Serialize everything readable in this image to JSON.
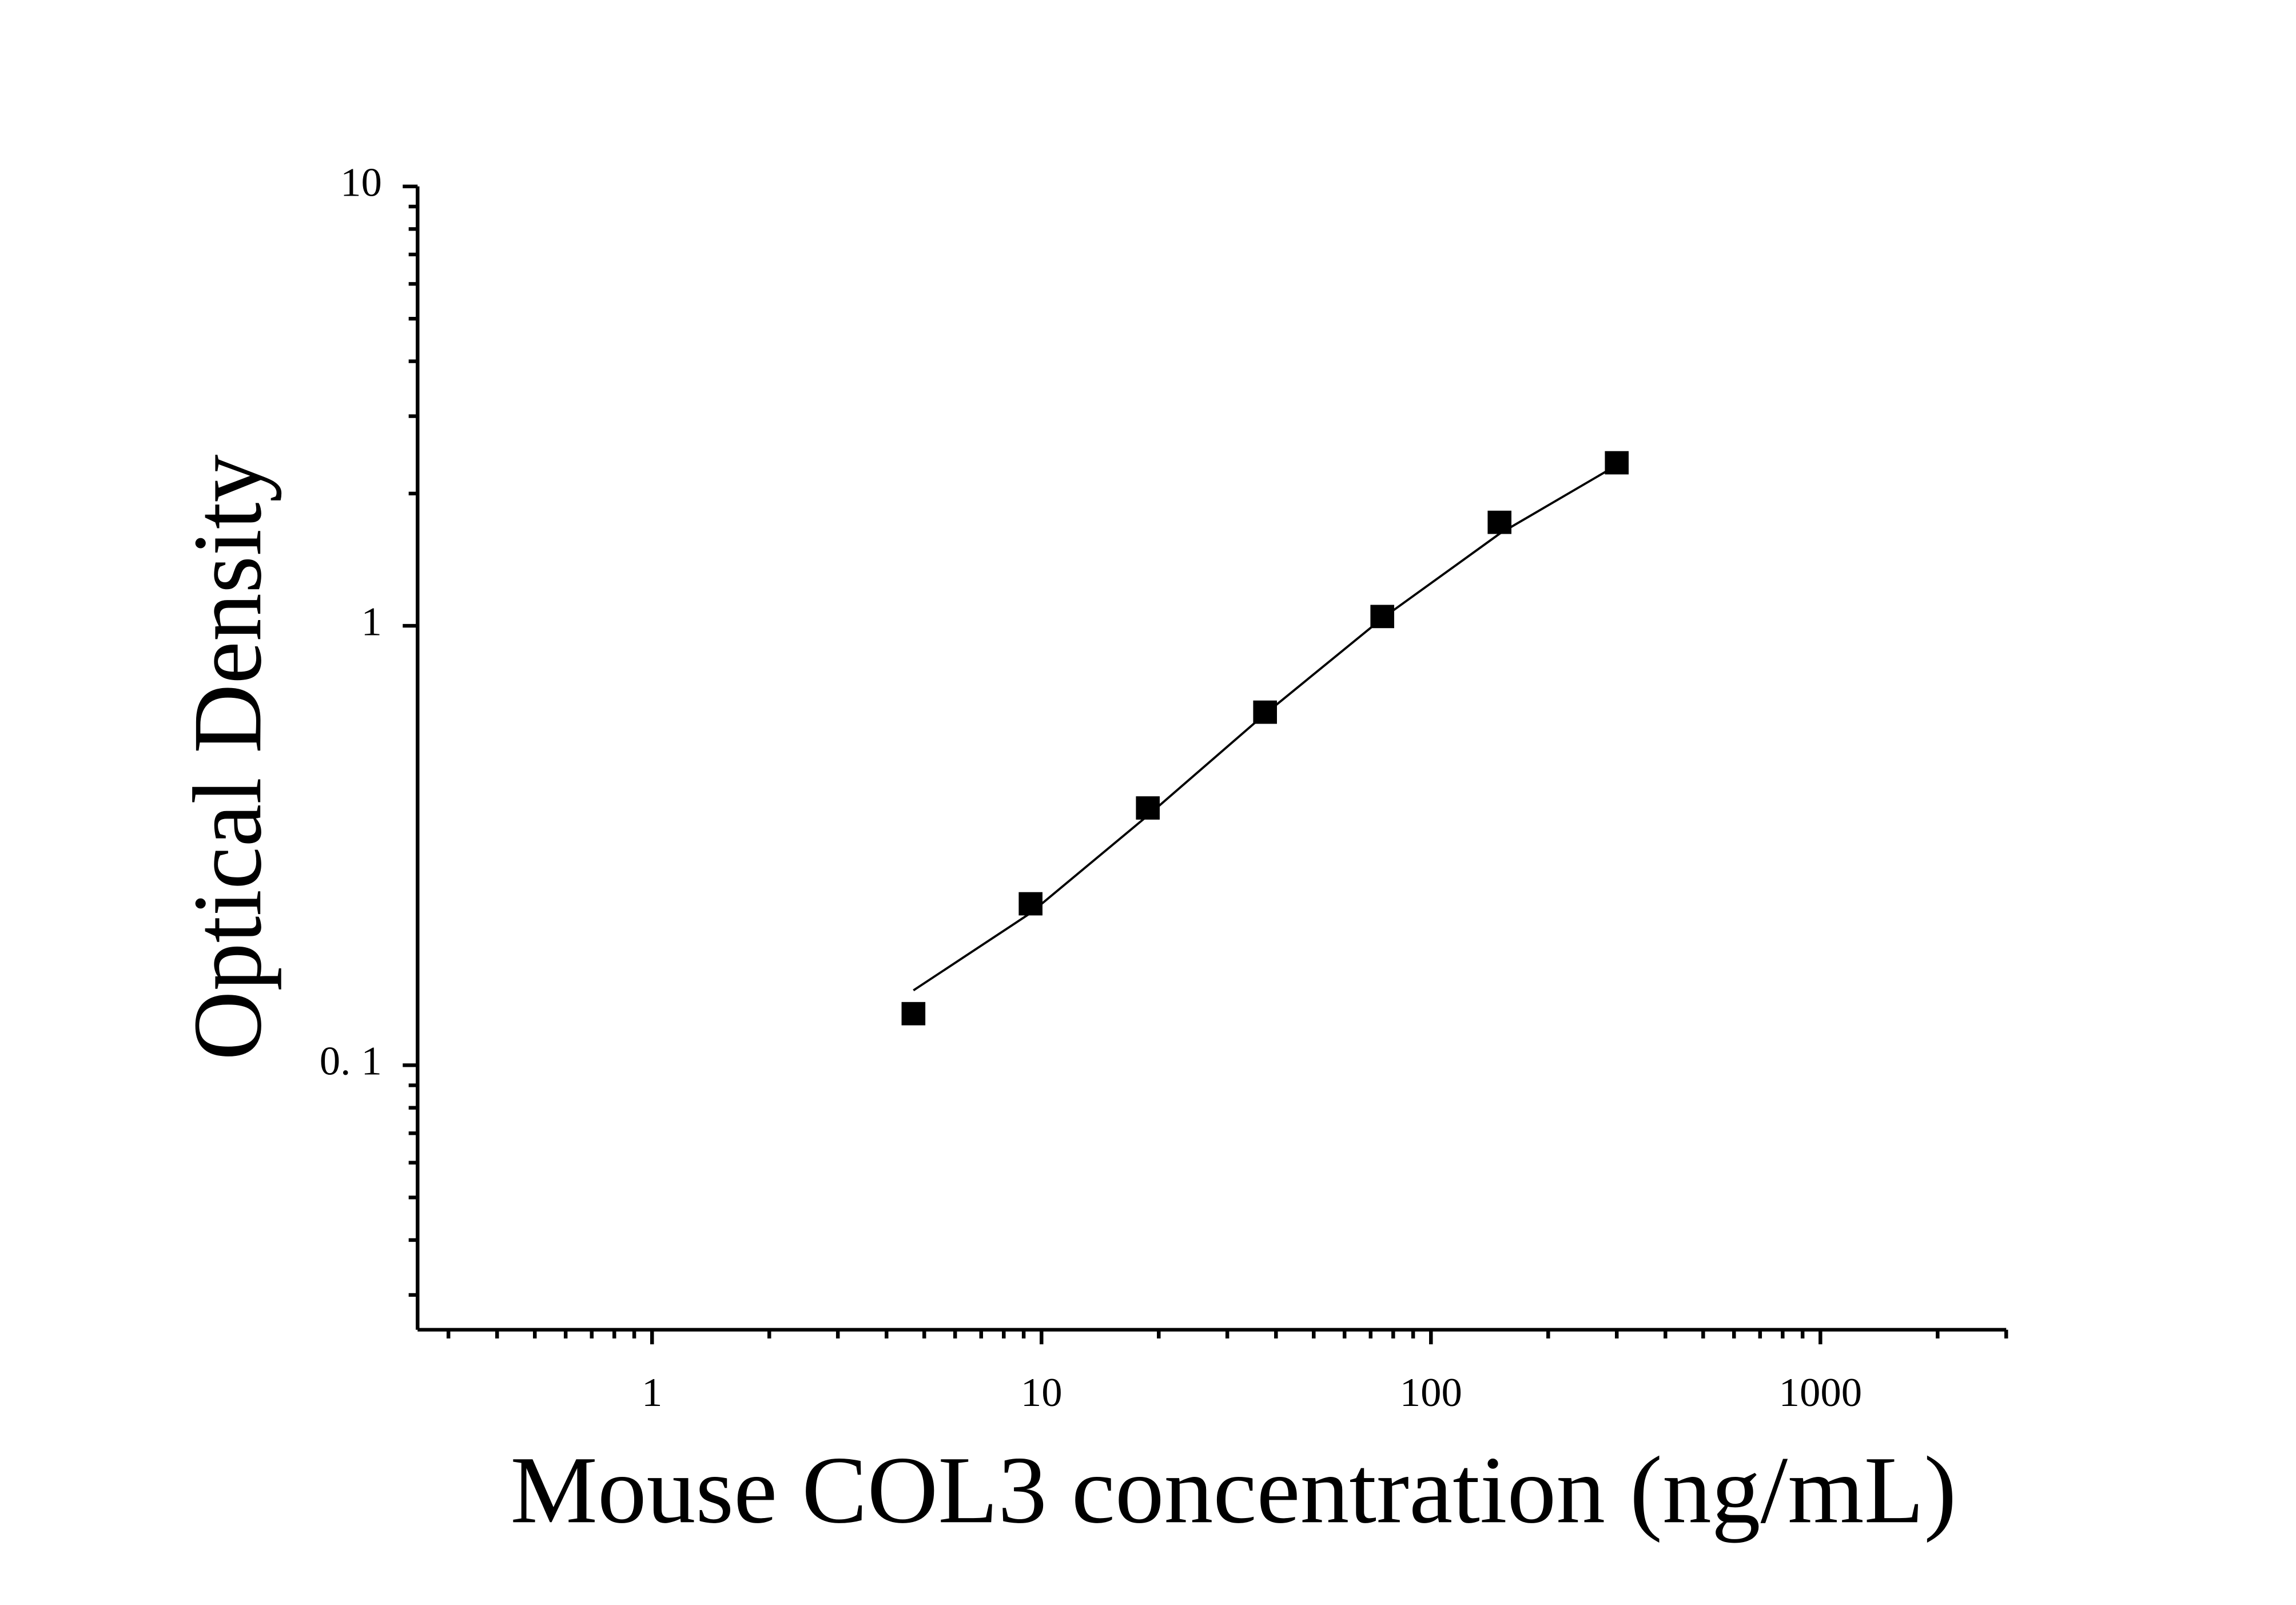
{
  "chart_data": {
    "type": "scatter",
    "x_label": "Mouse COL3 concentration (ng/mL)",
    "y_label": "Optical Density",
    "x_log": true,
    "y_log": true,
    "xlim": [
      0.25,
      3000
    ],
    "ylim": [
      0.025,
      10
    ],
    "xticks": [
      1,
      10,
      100,
      1000
    ],
    "yticks": [
      10,
      1,
      {
        "value": 0.1,
        "label": "0. 1"
      }
    ],
    "xminorticks": [
      0.3,
      0.4,
      0.5,
      0.6,
      0.7,
      0.8,
      0.9,
      2,
      3,
      4,
      5,
      6,
      7,
      8,
      9,
      20,
      30,
      40,
      50,
      60,
      70,
      80,
      90,
      200,
      300,
      400,
      500,
      600,
      700,
      800,
      900,
      2000,
      3000
    ],
    "yminorticks": [
      0.03,
      0.04,
      0.05,
      0.06,
      0.07,
      0.08,
      0.09,
      2,
      3,
      4,
      5,
      6,
      7,
      8,
      9
    ],
    "series": [
      {
        "color": "#000000",
        "marker": "square",
        "x": [
          4.69,
          9.375,
          18.75,
          37.5,
          75,
          150,
          300
        ],
        "values": [
          0.131,
          0.233,
          0.385,
          0.636,
          1.05,
          1.72,
          2.35
        ]
      },
      {
        "color": "#000000",
        "marker": "line",
        "x": [
          4.69,
          9.375,
          18.75,
          37.5,
          75,
          150,
          300
        ],
        "values": [
          0.148,
          0.222,
          0.37,
          0.63,
          1.04,
          1.62,
          2.32
        ]
      }
    ]
  }
}
